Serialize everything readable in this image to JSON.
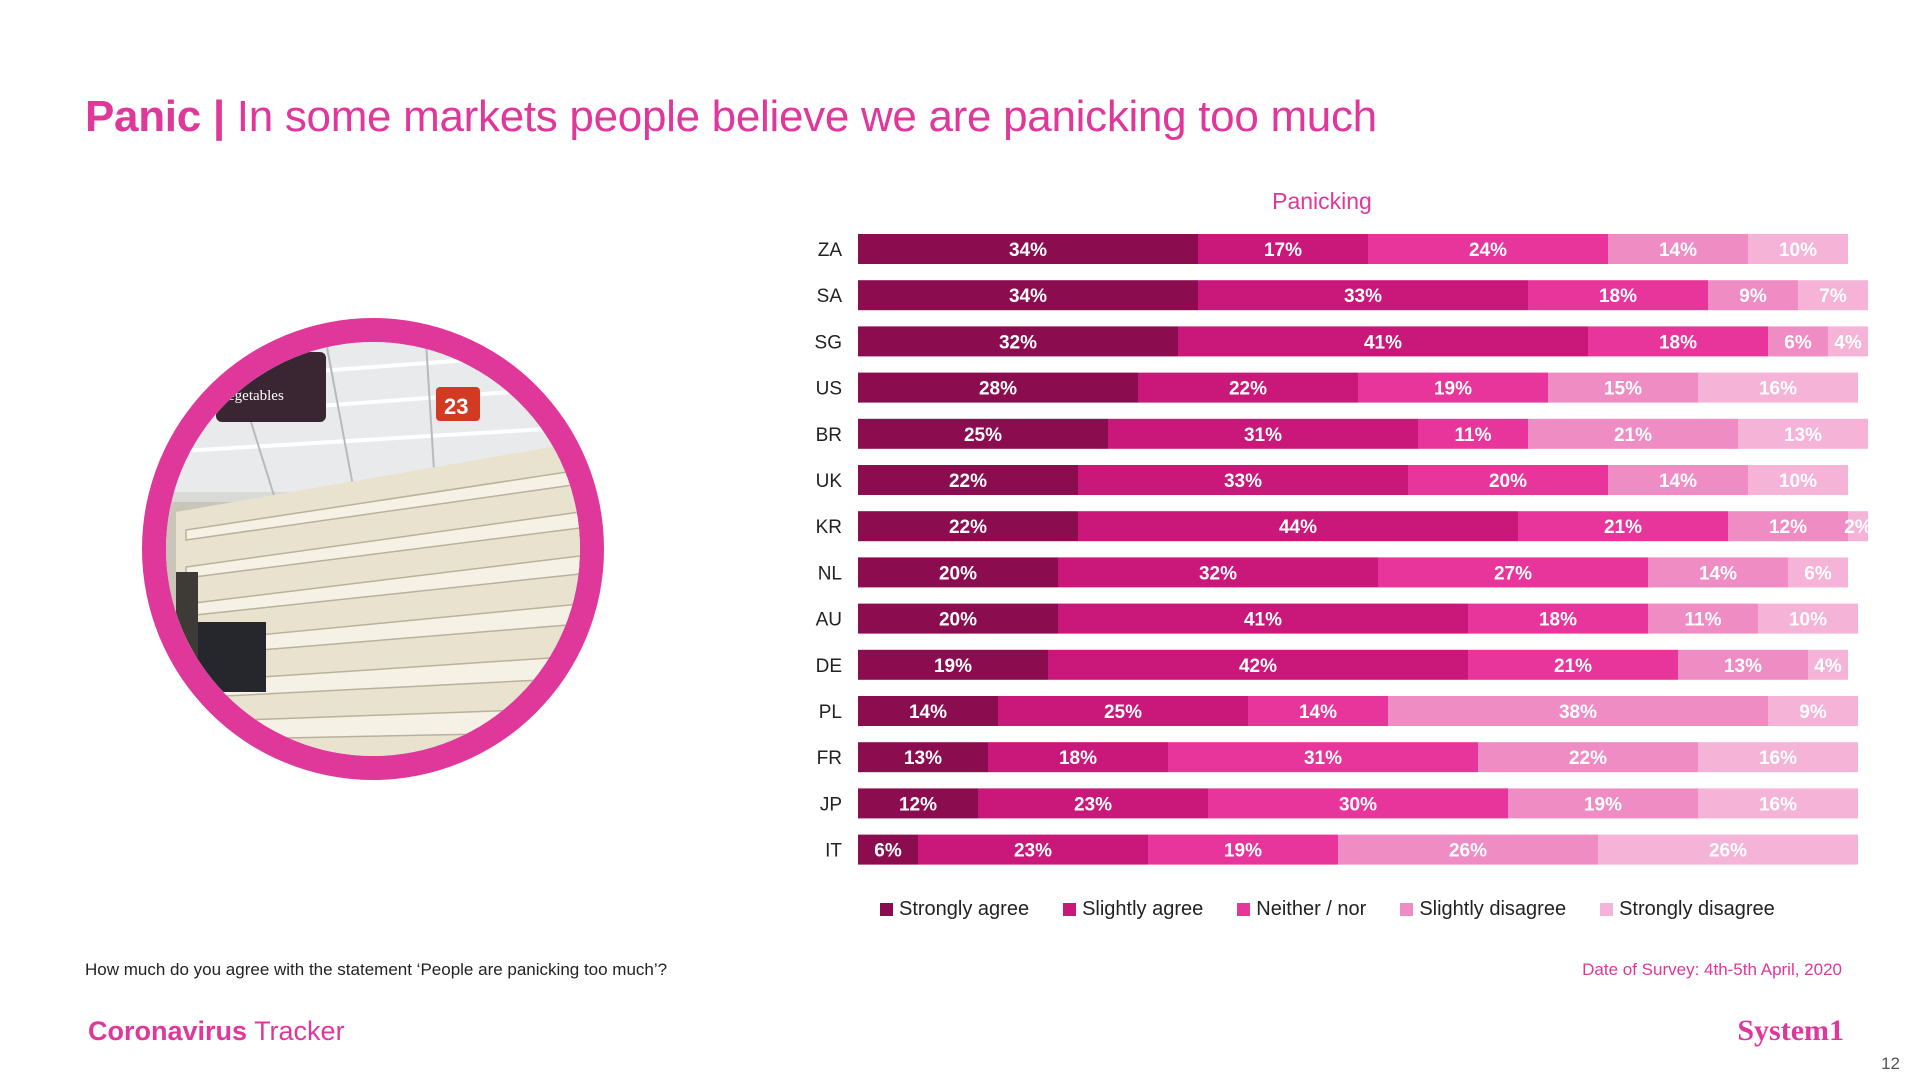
{
  "slide": {
    "title_bold": "Panic",
    "title_separator": "|",
    "title_rest": "In some markets people believe we are panicking too much",
    "question": "How much do you agree with the statement ‘People are panicking too much’?",
    "survey_date": "Date of Survey: 4th-5th April, 2020",
    "brand_left_bold": "Coronavirus",
    "brand_left_rest": "Tracker",
    "brand_right": "System1",
    "page_number": "12",
    "photo_sign_text": "egetables",
    "photo_sign_number": "23"
  },
  "colors": {
    "accent": "#e0379a",
    "strongly_agree": "#8c0d4f",
    "slightly_agree": "#c9187a",
    "neither": "#e8359b",
    "slightly_disagree": "#f08cc4",
    "strongly_disagree": "#f6b3d8"
  },
  "chart_data": {
    "type": "bar",
    "orientation": "horizontal",
    "stacked": true,
    "title": "Panicking",
    "xlabel": "",
    "ylabel": "",
    "xlim": [
      0,
      100
    ],
    "unit": "%",
    "legend_position": "bottom",
    "categories": [
      "ZA",
      "SA",
      "SG",
      "US",
      "BR",
      "UK",
      "KR",
      "NL",
      "AU",
      "DE",
      "PL",
      "FR",
      "JP",
      "IT"
    ],
    "series": [
      {
        "name": "Strongly agree",
        "color": "#8c0d4f",
        "values": [
          34,
          34,
          32,
          28,
          25,
          22,
          22,
          20,
          20,
          19,
          14,
          13,
          12,
          6
        ]
      },
      {
        "name": "Slightly agree",
        "color": "#c9187a",
        "values": [
          17,
          33,
          41,
          22,
          31,
          33,
          44,
          32,
          41,
          42,
          25,
          18,
          23,
          23
        ]
      },
      {
        "name": "Neither / nor",
        "color": "#e8359b",
        "values": [
          24,
          18,
          18,
          19,
          11,
          20,
          21,
          27,
          18,
          21,
          14,
          31,
          30,
          19
        ]
      },
      {
        "name": "Slightly disagree",
        "color": "#f08cc4",
        "values": [
          14,
          9,
          6,
          15,
          21,
          14,
          12,
          14,
          11,
          13,
          38,
          22,
          19,
          26
        ]
      },
      {
        "name": "Strongly disagree",
        "color": "#f6b3d8",
        "values": [
          10,
          7,
          4,
          16,
          13,
          10,
          2,
          6,
          10,
          4,
          9,
          16,
          16,
          26
        ]
      }
    ]
  }
}
